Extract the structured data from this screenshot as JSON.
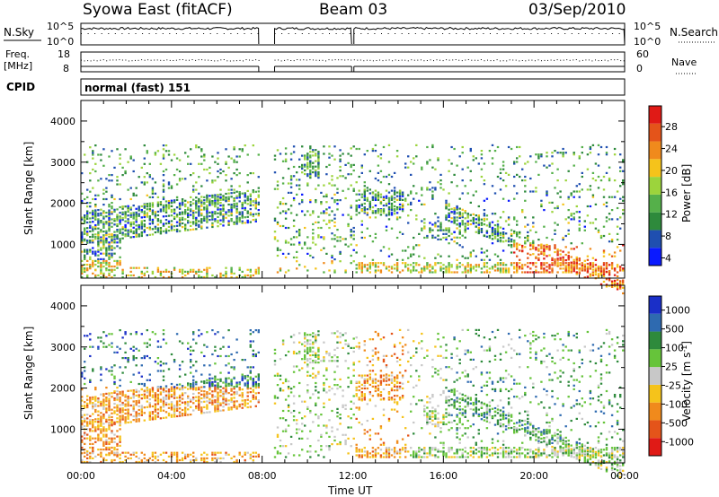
{
  "header": {
    "station": "Syowa East (fitACF)",
    "beam": "Beam 03",
    "date": "03/Sep/2010"
  },
  "nsky_panel": {
    "left_label": "N.Sky",
    "right_label": "N.Search",
    "y_ticks_left": [
      "10^5",
      "10^0"
    ],
    "y_ticks_right": [
      "10^5",
      "10^0"
    ]
  },
  "freq_panel": {
    "left_label_1": "Freq.",
    "left_label_2": "[MHz]",
    "right_label": "Nave",
    "y_ticks_left": [
      "18",
      "8"
    ],
    "y_ticks_right": [
      "60",
      "0"
    ]
  },
  "cpid": {
    "label": "CPID",
    "value": "normal (fast) 151"
  },
  "colors": {
    "power_scale": [
      "#0a1aff",
      "#1f4fb0",
      "#2e8a3c",
      "#55b04a",
      "#9cd43c",
      "#f5c31b",
      "#f08a1c",
      "#e4541a",
      "#e01a16"
    ],
    "velocity_scale": [
      "#1a2fc8",
      "#2e6ab0",
      "#2e8a3c",
      "#66c43a",
      "#c8c8c8",
      "#f5c31b",
      "#f08a1c",
      "#e4541a",
      "#e01a16"
    ]
  },
  "chart_data": [
    {
      "type": "heatmap",
      "name": "power",
      "ylabel": "Slant Range [km]",
      "y_ticks": [
        "4000",
        "3000",
        "2000",
        "1000"
      ],
      "x_ticks": [
        "00:00",
        "04:00",
        "08:00",
        "12:00",
        "16:00",
        "20:00",
        "00:00"
      ],
      "colorbar_label": "Power [dB]",
      "colorbar_ticks": [
        "28",
        "24",
        "20",
        "16",
        "12",
        "8",
        "4"
      ],
      "ylim": [
        180,
        4500
      ],
      "xlim": [
        0,
        24
      ]
    },
    {
      "type": "heatmap",
      "name": "velocity",
      "ylabel": "Slant Range [km]",
      "xlabel": "Time UT",
      "y_ticks": [
        "4000",
        "3000",
        "2000",
        "1000"
      ],
      "x_ticks": [
        "00:00",
        "04:00",
        "08:00",
        "12:00",
        "16:00",
        "20:00",
        "00:00"
      ],
      "colorbar_label": "Velocity [m s",
      "colorbar_label_sup": "-1",
      "colorbar_label_end": "]",
      "colorbar_ticks": [
        "1000",
        "500",
        "100",
        "25",
        "-25",
        "-100",
        "-500",
        "-1000"
      ],
      "ylim": [
        180,
        4500
      ],
      "xlim": [
        0,
        24
      ]
    }
  ]
}
